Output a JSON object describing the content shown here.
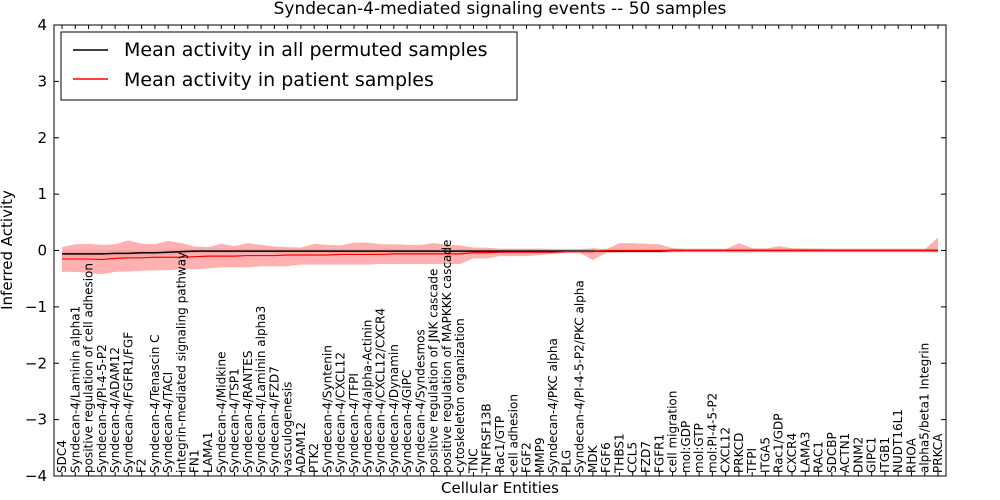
{
  "chart_data": {
    "type": "line",
    "title": "Syndecan-4-mediated signaling events -- 50 samples",
    "xlabel": "Cellular Entities",
    "ylabel": "Inferred Activity",
    "ylim": [
      -4,
      4
    ],
    "yticks": [
      -4,
      -3,
      -2,
      -1,
      0,
      1,
      2,
      3,
      4
    ],
    "legend_position": "top-left",
    "categories": [
      "SDC4",
      "Syndecan-4/Laminin alpha1",
      "positive regulation of cell adhesion",
      "Syndecan-4/PI-4-5-P2",
      "Syndecan-4/ADAM12",
      "Syndecan-4/FGFR1/FGF",
      "F2",
      "Syndecan-4/Tenascin C",
      "Syndecan-4/TACI",
      "integrin-mediated signaling pathway",
      "FN1",
      "LAMA1",
      "Syndecan-4/Midkine",
      "Syndecan-4/TSP1",
      "Syndecan-4/RANTES",
      "Syndecan-4/Laminin alpha3",
      "Syndecan-4/FZD7",
      "vasculogenesis",
      "ADAM12",
      "PTK2",
      "Syndecan-4/Syntenin",
      "Syndecan-4/CXCL12",
      "Syndecan-4/TFPI",
      "Syndecan-4/alpha-Actinin",
      "Syndecan-4/CXCL12/CXCR4",
      "Syndecan-4/Dynamin",
      "Syndecan-4/GIPC",
      "Syndecan-4/Syndesmos",
      "positive regulation of JNK cascade",
      "positive regulation of MAPKKK cascade",
      "cytoskeleton organization",
      "TNC",
      "TNFRSF13B",
      "Rac1/GTP",
      "cell adhesion",
      "FGF2",
      "MMP9",
      "Syndecan-4/PKC alpha",
      "PLG",
      "Syndecan-4/PI-4-5-P2/PKC alpha",
      "MDK",
      "FGF6",
      "THBS1",
      "CCL5",
      "FZD7",
      "FGFR1",
      "cell migration",
      "mol:GDP",
      "mol:GTP",
      "mol:PI-4-5-P2",
      "CXCL12",
      "PRKCD",
      "TFPI",
      "ITGA5",
      "Rac1/GDP",
      "CXCR4",
      "LAMA3",
      "RAC1",
      "SDCBP",
      "ACTN1",
      "DNM2",
      "GIPC1",
      "ITGB1",
      "NUDT16L1",
      "RHOA",
      "alpha5/beta1 Integrin",
      "PRKCA"
    ],
    "series": [
      {
        "name": "Mean activity in all permuted samples",
        "color": "#000000",
        "values": [
          -0.06,
          -0.06,
          -0.06,
          -0.06,
          -0.05,
          -0.05,
          -0.04,
          -0.04,
          -0.03,
          -0.02,
          -0.01,
          -0.01,
          -0.01,
          -0.01,
          -0.01,
          -0.01,
          -0.01,
          -0.01,
          -0.01,
          -0.01,
          -0.01,
          -0.01,
          -0.01,
          -0.01,
          -0.01,
          -0.01,
          -0.01,
          -0.01,
          -0.01,
          -0.01,
          -0.01,
          -0.01,
          -0.01,
          -0.01,
          -0.01,
          -0.01,
          -0.01,
          -0.01,
          -0.01,
          -0.01,
          -0.01,
          -0.01,
          -0.01,
          -0.01,
          -0.01,
          -0.01,
          0,
          0,
          0,
          0,
          0,
          0,
          0,
          0,
          0,
          0,
          0,
          0,
          0,
          0,
          0,
          0,
          0,
          0,
          0,
          0,
          0
        ],
        "band": "#bbbbbb",
        "lower": [
          -0.12,
          -0.12,
          -0.12,
          -0.12,
          -0.11,
          -0.11,
          -0.1,
          -0.09,
          -0.08,
          -0.06,
          -0.05,
          -0.05,
          -0.05,
          -0.05,
          -0.05,
          -0.05,
          -0.05,
          -0.05,
          -0.05,
          -0.05,
          -0.05,
          -0.05,
          -0.05,
          -0.05,
          -0.05,
          -0.05,
          -0.05,
          -0.05,
          -0.05,
          -0.05,
          -0.05,
          -0.05,
          -0.05,
          -0.05,
          -0.05,
          -0.05,
          -0.05,
          -0.05,
          -0.05,
          -0.05,
          -0.05,
          -0.05,
          -0.05,
          -0.05,
          -0.05,
          -0.05,
          -0.04,
          -0.04,
          -0.04,
          -0.04,
          -0.04,
          -0.04,
          -0.04,
          -0.04,
          -0.04,
          -0.04,
          -0.04,
          -0.04,
          -0.04,
          -0.04,
          -0.04,
          -0.04,
          -0.04,
          -0.04,
          -0.04,
          -0.04,
          -0.04
        ],
        "upper": [
          0,
          0,
          0,
          0,
          0.01,
          0.01,
          0.01,
          0.01,
          0.02,
          0.02,
          0.03,
          0.03,
          0.03,
          0.03,
          0.03,
          0.03,
          0.03,
          0.03,
          0.03,
          0.03,
          0.03,
          0.03,
          0.03,
          0.03,
          0.03,
          0.03,
          0.03,
          0.03,
          0.03,
          0.03,
          0.03,
          0.03,
          0.03,
          0.03,
          0.03,
          0.03,
          0.03,
          0.03,
          0.03,
          0.03,
          0.03,
          0.03,
          0.03,
          0.03,
          0.03,
          0.03,
          0.04,
          0.04,
          0.04,
          0.04,
          0.04,
          0.04,
          0.04,
          0.04,
          0.04,
          0.04,
          0.04,
          0.04,
          0.04,
          0.04,
          0.04,
          0.04,
          0.04,
          0.04,
          0.04,
          0.04,
          0.04
        ]
      },
      {
        "name": "Mean activity in patient samples",
        "color": "#ff0000",
        "values": [
          -0.15,
          -0.15,
          -0.15,
          -0.16,
          -0.14,
          -0.13,
          -0.13,
          -0.12,
          -0.12,
          -0.12,
          -0.11,
          -0.1,
          -0.1,
          -0.1,
          -0.09,
          -0.09,
          -0.09,
          -0.08,
          -0.08,
          -0.08,
          -0.08,
          -0.07,
          -0.07,
          -0.07,
          -0.07,
          -0.06,
          -0.06,
          -0.06,
          -0.06,
          -0.06,
          -0.06,
          -0.04,
          -0.04,
          -0.03,
          -0.03,
          -0.03,
          -0.03,
          -0.03,
          -0.02,
          -0.02,
          -0.02,
          0,
          0,
          0,
          0,
          0,
          0,
          0,
          0,
          0,
          0,
          0,
          0,
          0,
          0,
          0,
          0,
          0,
          0,
          0,
          0,
          0,
          0,
          0,
          0,
          0,
          0
        ],
        "band": "#ff7b7b",
        "lower": [
          -0.38,
          -0.38,
          -0.4,
          -0.42,
          -0.38,
          -0.37,
          -0.36,
          -0.35,
          -0.35,
          -0.33,
          -0.33,
          -0.32,
          -0.3,
          -0.3,
          -0.3,
          -0.28,
          -0.28,
          -0.28,
          -0.25,
          -0.25,
          -0.25,
          -0.25,
          -0.25,
          -0.25,
          -0.24,
          -0.24,
          -0.24,
          -0.24,
          -0.24,
          -0.24,
          -0.24,
          -0.14,
          -0.14,
          -0.1,
          -0.1,
          -0.1,
          -0.08,
          -0.06,
          -0.04,
          -0.04,
          -0.17,
          -0.04,
          -0.02,
          -0.02,
          -0.02,
          -0.02,
          -0.01,
          -0.01,
          -0.01,
          -0.01,
          -0.01,
          -0.01,
          -0.01,
          -0.01,
          -0.01,
          -0.01,
          -0.01,
          -0.01,
          -0.01,
          -0.01,
          -0.01,
          -0.01,
          -0.01,
          -0.01,
          -0.01,
          -0.01,
          -0.03
        ],
        "upper": [
          0.06,
          0.11,
          0.12,
          0.1,
          0.11,
          0.18,
          0.12,
          0.11,
          0.17,
          0.13,
          0.07,
          0.06,
          0.12,
          0.08,
          0.13,
          0.1,
          0.07,
          0.06,
          0.05,
          0.12,
          0.1,
          0.09,
          0.14,
          0.14,
          0.11,
          0.11,
          0.1,
          0.1,
          0.13,
          0.1,
          0.09,
          0.05,
          0.05,
          0.03,
          0.03,
          0.03,
          0.03,
          0.02,
          0.02,
          0.02,
          0.04,
          0.02,
          0.13,
          0.13,
          0.12,
          0.11,
          0.04,
          0.02,
          0.02,
          0.02,
          0.02,
          0.13,
          0.04,
          0.03,
          0.08,
          0.04,
          0.03,
          0.03,
          0.02,
          0.02,
          0.02,
          0.02,
          0.02,
          0.02,
          0.02,
          0.02,
          0.23
        ]
      }
    ]
  }
}
